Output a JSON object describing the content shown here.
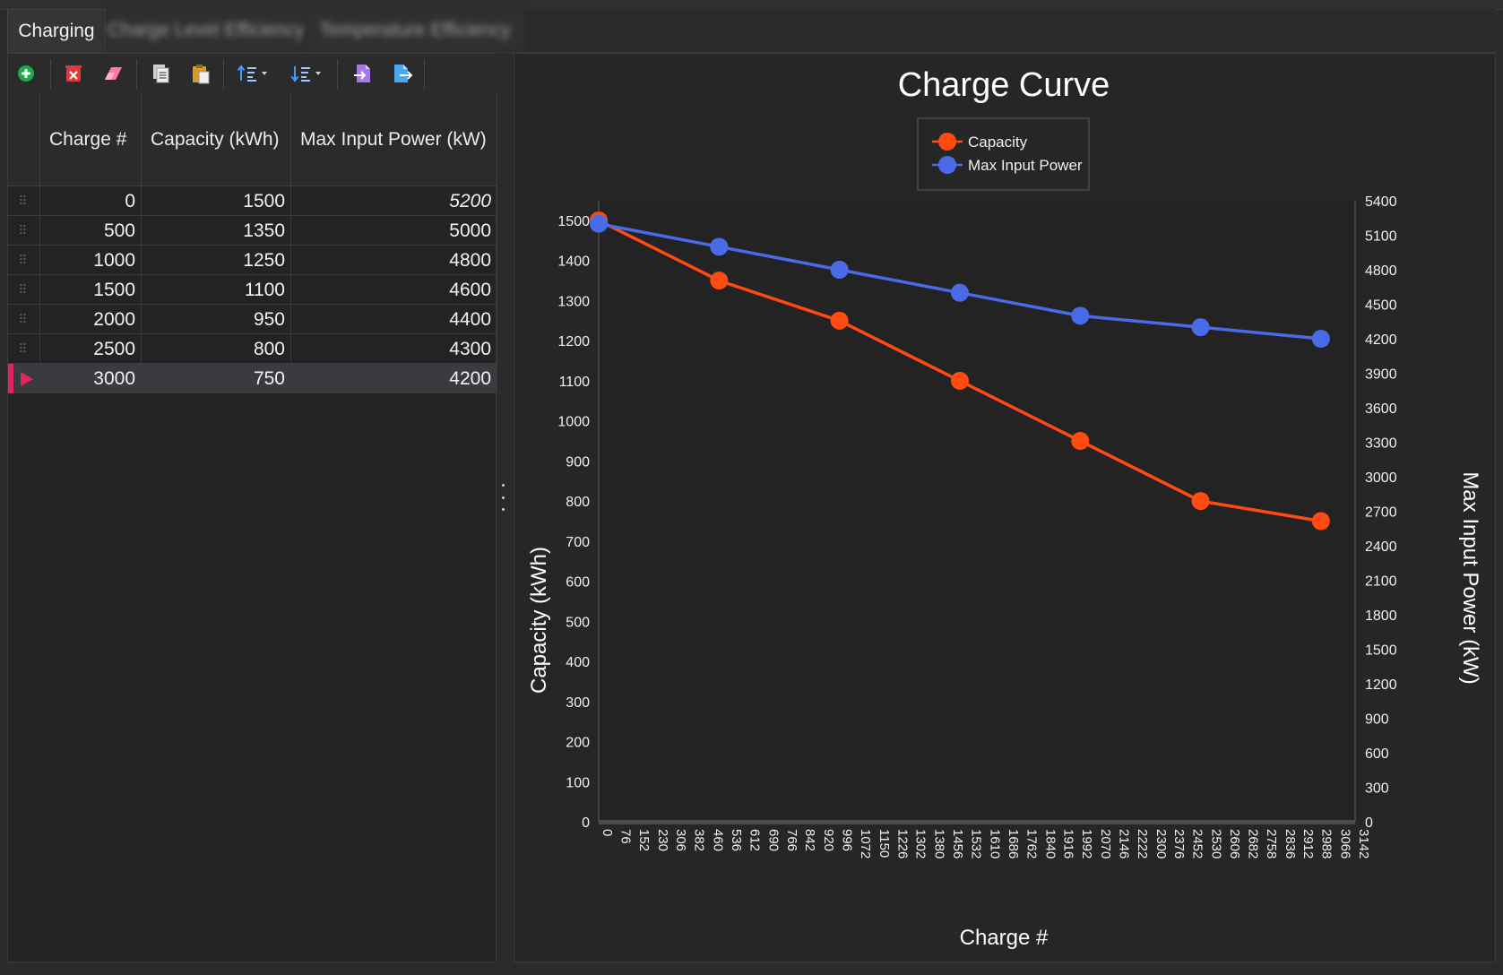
{
  "tabs": [
    {
      "label": "Charging"
    },
    {
      "label": "Charge Level Efficiency"
    },
    {
      "label": "Temperature Efficiency"
    }
  ],
  "toolbar": {
    "icons": [
      "add-icon",
      "delete-icon",
      "eraser-icon",
      "copy-icon",
      "paste-icon",
      "sort-ascending-icon",
      "sort-descending-icon",
      "import-icon",
      "export-icon"
    ]
  },
  "grid": {
    "columns": [
      "Charge #",
      "Capacity (kWh)",
      "Max Input Power (kW)"
    ],
    "rows": [
      {
        "charge": "0",
        "capacity": "1500",
        "power": "5200"
      },
      {
        "charge": "500",
        "capacity": "1350",
        "power": "5000"
      },
      {
        "charge": "1000",
        "capacity": "1250",
        "power": "4800"
      },
      {
        "charge": "1500",
        "capacity": "1100",
        "power": "4600"
      },
      {
        "charge": "2000",
        "capacity": "950",
        "power": "4400"
      },
      {
        "charge": "2500",
        "capacity": "800",
        "power": "4300"
      },
      {
        "charge": "3000",
        "capacity": "750",
        "power": "4200"
      }
    ],
    "selected_row": 6
  },
  "colors": {
    "capacity": "#ff4a12",
    "power": "#4a6be8",
    "selection": "#e0245e"
  },
  "chart_data": {
    "type": "line",
    "title": "Charge Curve",
    "xlabel": "Charge #",
    "ylabel": "Capacity (kWh)",
    "y2label": "Max Input Power (kW)",
    "x": [
      0,
      500,
      1000,
      1500,
      2000,
      2500,
      3000
    ],
    "xlim": [
      0,
      3142
    ],
    "ylim": [
      0,
      1500
    ],
    "y2lim": [
      0,
      5400
    ],
    "xticks": [
      0,
      76,
      152,
      230,
      306,
      382,
      460,
      536,
      612,
      690,
      766,
      842,
      920,
      996,
      1072,
      1150,
      1226,
      1302,
      1380,
      1456,
      1532,
      1610,
      1686,
      1762,
      1840,
      1916,
      1992,
      2070,
      2146,
      2222,
      2300,
      2376,
      2452,
      2530,
      2606,
      2682,
      2758,
      2836,
      2912,
      2988,
      3066,
      3142
    ],
    "yticks": [
      0,
      100,
      200,
      300,
      400,
      500,
      600,
      700,
      800,
      900,
      1000,
      1100,
      1200,
      1300,
      1400,
      1500
    ],
    "y2ticks": [
      0,
      300,
      600,
      900,
      1200,
      1500,
      1800,
      2100,
      2400,
      2700,
      3000,
      3300,
      3600,
      3900,
      4200,
      4500,
      4800,
      5100,
      5400
    ],
    "grid": true,
    "legend_position": "top-center",
    "series": [
      {
        "name": "Capacity",
        "axis": "left",
        "values": [
          1500,
          1350,
          1250,
          1100,
          950,
          800,
          750
        ]
      },
      {
        "name": "Max Input Power",
        "axis": "right",
        "values": [
          5200,
          5000,
          4800,
          4600,
          4400,
          4300,
          4200
        ]
      }
    ]
  }
}
